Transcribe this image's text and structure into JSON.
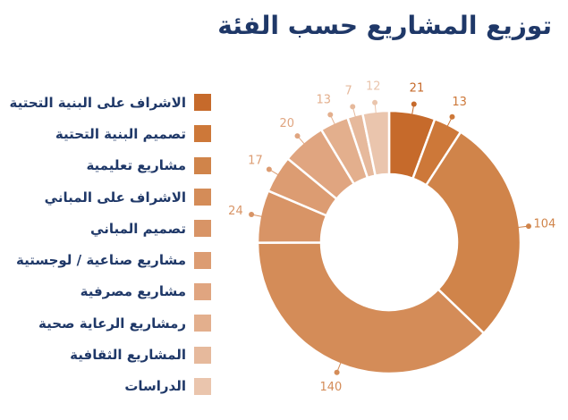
{
  "title": "توزيع المشاريع حسب الفئة",
  "chart_data": {
    "type": "pie",
    "variant": "donut",
    "title": "توزيع المشاريع حسب الفئة",
    "legend_position": "left",
    "slices": [
      {
        "label": "الاشراف على البنية التحتية",
        "value": 21,
        "color": "#c66a2b"
      },
      {
        "label": "تصميم البنية التحتية",
        "value": 13,
        "color": "#cd7839"
      },
      {
        "label": "مشاريع تعليمية",
        "value": 104,
        "color": "#d0844a"
      },
      {
        "label": "الاشراف على المباني",
        "value": 140,
        "color": "#d48c58"
      },
      {
        "label": "تصميم المباني",
        "value": 24,
        "color": "#d89466"
      },
      {
        "label": "مشاريع صناعية / لوجستية",
        "value": 17,
        "color": "#dc9c72"
      },
      {
        "label": "مشاريع مصرفية",
        "value": 20,
        "color": "#e0a580"
      },
      {
        "label": "رمشاريع الرعاية صحية",
        "value": 13,
        "color": "#e3af8d"
      },
      {
        "label": "المشاريع الثقافية",
        "value": 7,
        "color": "#e6b99c"
      },
      {
        "label": "الدراسات",
        "value": 12,
        "color": "#eac5ad"
      }
    ]
  }
}
